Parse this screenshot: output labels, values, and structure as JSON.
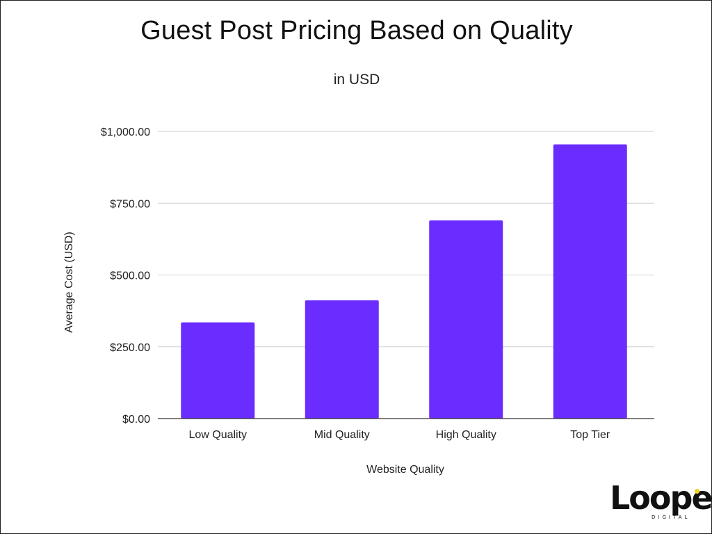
{
  "chart_data": {
    "type": "bar",
    "title": "Guest Post Pricing Based on Quality",
    "subtitle": "in USD",
    "xlabel": "Website Quality",
    "ylabel": "Average Cost (USD)",
    "categories": [
      "Low Quality",
      "Mid Quality",
      "High Quality",
      "Top Tier"
    ],
    "values": [
      335,
      412,
      690,
      955
    ],
    "ylim": [
      0,
      1000
    ],
    "yticks": [
      0,
      250,
      500,
      750,
      1000
    ],
    "ytick_labels": [
      "$0.00",
      "$250.00",
      "$500.00",
      "$750.00",
      "$1,000.00"
    ],
    "grid": true,
    "legend": "none",
    "bar_color": "#6a2cff"
  },
  "branding": {
    "logo_word": "Loopex",
    "logo_sub": "DIGITAL",
    "dot_color": "#f2d024"
  }
}
